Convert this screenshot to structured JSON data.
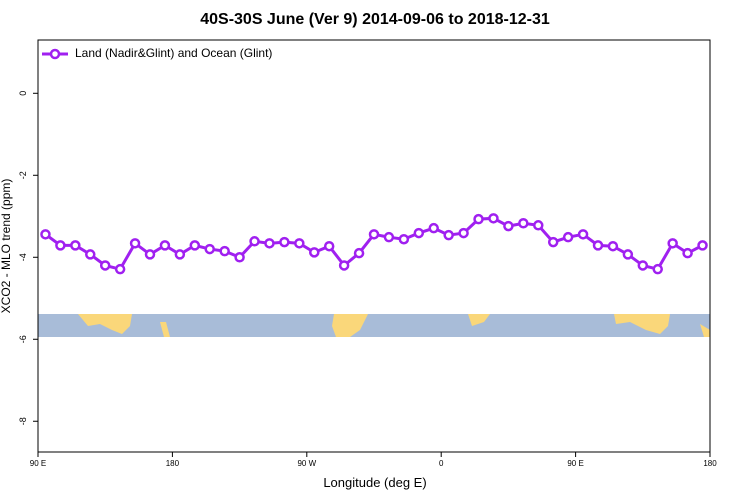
{
  "chart_data": {
    "type": "line",
    "title": "40S-30S June (Ver 9)   2014-09-06 to 2018-12-31",
    "x_label": "Longitude (deg E)",
    "y_label": "XCO2 - MLO trend (ppm)",
    "x": [
      95,
      105,
      115,
      125,
      135,
      145,
      155,
      165,
      175,
      185,
      195,
      205,
      215,
      225,
      235,
      245,
      255,
      265,
      275,
      285,
      295,
      305,
      315,
      325,
      335,
      345,
      355,
      365,
      375,
      385,
      395,
      405,
      415,
      425,
      435,
      445,
      455,
      465,
      475,
      485,
      495,
      505,
      515,
      525,
      535
    ],
    "series": [
      {
        "name": "Land (Nadir&Glint) and Ocean (Glint)",
        "color": "#a020f0",
        "values": [
          -3.44,
          -3.71,
          -3.71,
          -3.93,
          -4.2,
          -4.29,
          -3.66,
          -3.93,
          -3.71,
          -3.93,
          -3.71,
          -3.8,
          -3.85,
          -4.0,
          -3.61,
          -3.66,
          -3.63,
          -3.66,
          -3.88,
          -3.73,
          -4.2,
          -3.9,
          -3.44,
          -3.51,
          -3.56,
          -3.41,
          -3.29,
          -3.46,
          -3.41,
          -3.07,
          -3.05,
          -3.24,
          -3.17,
          -3.22,
          -3.63,
          -3.51,
          -3.44,
          -3.71,
          -3.73,
          -3.93,
          -4.2,
          -4.29,
          -3.66,
          -3.9,
          -3.71
        ]
      }
    ],
    "xlim": [
      90,
      540
    ],
    "xticks": [
      {
        "value": 90,
        "label": "90 E"
      },
      {
        "value": 180,
        "label": "180"
      },
      {
        "value": 270,
        "label": "90 W"
      },
      {
        "value": 360,
        "label": "0"
      },
      {
        "value": 450,
        "label": "90 E"
      },
      {
        "value": 540,
        "label": "180"
      }
    ],
    "ylim": [
      -8.75,
      1.3
    ],
    "yticks": [
      -8,
      -6,
      -4,
      -2,
      0
    ],
    "legend": "top-left"
  }
}
